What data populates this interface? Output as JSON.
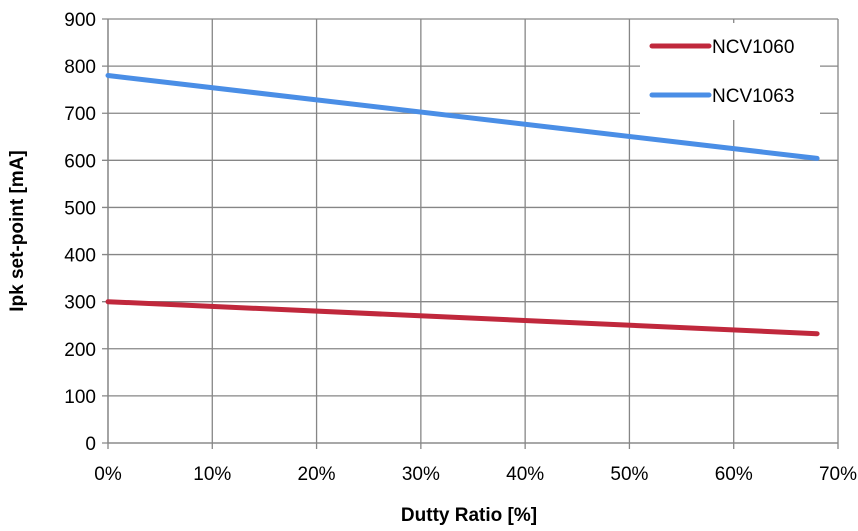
{
  "chart_data": {
    "type": "line",
    "xlabel": "Dutty Ratio [%]",
    "ylabel": "Ipk set-point [mA]",
    "xlim": [
      0,
      70
    ],
    "ylim": [
      0,
      900
    ],
    "x_ticks": [
      "0%",
      "10%",
      "20%",
      "30%",
      "40%",
      "50%",
      "60%",
      "70%"
    ],
    "y_ticks": [
      "0",
      "100",
      "200",
      "300",
      "400",
      "500",
      "600",
      "700",
      "800",
      "900"
    ],
    "grid": true,
    "legend_position": "top-right",
    "series": [
      {
        "name": "NCV1060",
        "color": "#C0283C",
        "x": [
          0,
          68
        ],
        "values": [
          300,
          232
        ]
      },
      {
        "name": "NCV1063",
        "color": "#4A8EE6",
        "x": [
          0,
          68
        ],
        "values": [
          780,
          604
        ]
      }
    ]
  }
}
